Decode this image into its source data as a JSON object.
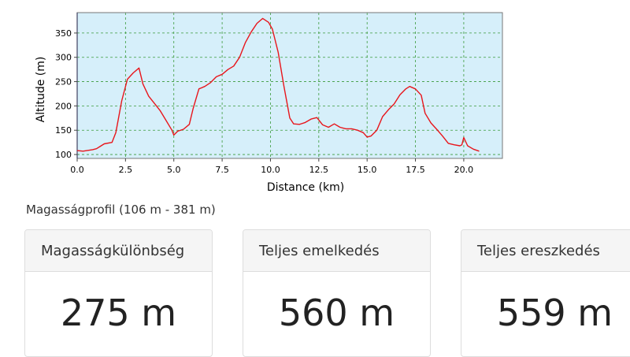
{
  "chart_data": {
    "type": "line",
    "xlabel": "Distance (km)",
    "ylabel": "Altitude (m)",
    "xlim": [
      0,
      22
    ],
    "ylim": [
      92,
      392
    ],
    "xticks": [
      0,
      2.5,
      5,
      7.5,
      10,
      12.5,
      15,
      17.5,
      20
    ],
    "xtick_labels": [
      "0.0",
      "2.5",
      "5.0",
      "7.5",
      "10.0",
      "12.5",
      "15.0",
      "17.5",
      "20.0"
    ],
    "yticks": [
      100,
      150,
      200,
      250,
      300,
      350
    ],
    "ytick_labels": [
      "100",
      "150",
      "200",
      "250",
      "300",
      "350"
    ],
    "grid": true,
    "background_color": "#d6effa",
    "line_color": "#e8151b",
    "x": [
      0,
      0.3,
      0.8,
      1.0,
      1.4,
      1.8,
      2.0,
      2.3,
      2.6,
      2.9,
      3.2,
      3.4,
      3.7,
      4.0,
      4.3,
      4.6,
      4.9,
      5.0,
      5.2,
      5.5,
      5.8,
      6.0,
      6.3,
      6.6,
      6.9,
      7.2,
      7.5,
      7.8,
      8.1,
      8.4,
      8.7,
      9.0,
      9.3,
      9.6,
      9.9,
      10.1,
      10.4,
      10.7,
      11.0,
      11.2,
      11.5,
      11.8,
      12.1,
      12.4,
      12.7,
      13.0,
      13.3,
      13.6,
      13.9,
      14.2,
      14.5,
      14.8,
      15.0,
      15.2,
      15.5,
      15.8,
      16.1,
      16.4,
      16.7,
      17.0,
      17.2,
      17.5,
      17.8,
      18.0,
      18.3,
      18.6,
      18.9,
      19.2,
      19.5,
      19.8,
      19.9,
      20.0,
      20.2,
      20.5,
      20.8
    ],
    "y": [
      108,
      107,
      110,
      112,
      122,
      125,
      145,
      210,
      255,
      268,
      278,
      245,
      220,
      205,
      190,
      170,
      150,
      140,
      148,
      152,
      162,
      195,
      235,
      240,
      248,
      260,
      265,
      275,
      282,
      300,
      330,
      352,
      370,
      380,
      372,
      358,
      310,
      240,
      175,
      163,
      162,
      166,
      173,
      176,
      161,
      156,
      163,
      156,
      153,
      153,
      150,
      145,
      136,
      138,
      150,
      178,
      192,
      204,
      223,
      235,
      240,
      235,
      222,
      185,
      165,
      152,
      138,
      123,
      120,
      118,
      120,
      135,
      118,
      111,
      107
    ]
  },
  "caption": "Magasságprofil (106 m - 381 m)",
  "stats": [
    {
      "label": "Magasságkülönbség",
      "value": "275 m"
    },
    {
      "label": "Teljes emelkedés",
      "value": "560 m"
    },
    {
      "label": "Teljes ereszkedés",
      "value": "559 m"
    }
  ]
}
